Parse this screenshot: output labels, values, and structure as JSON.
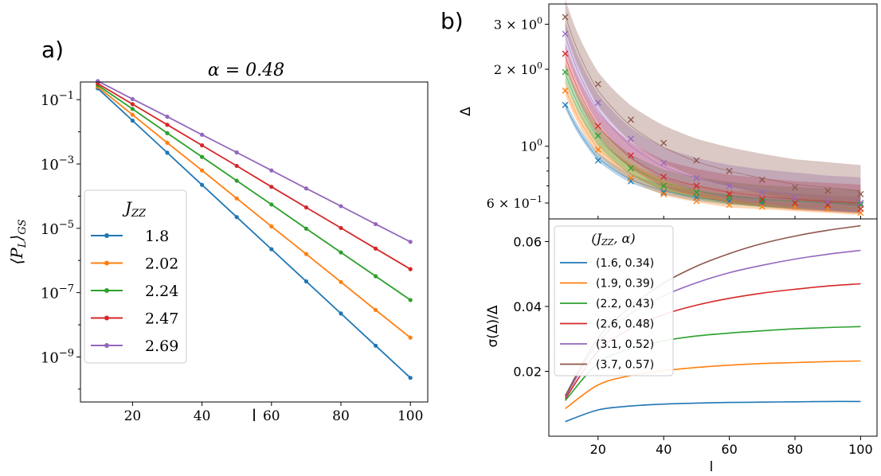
{
  "panel_labels": {
    "a": "a)",
    "b": "b)"
  },
  "colors": {
    "blue": "#1f77b4",
    "orange": "#ff7f0e",
    "green": "#2ca02c",
    "red": "#d62728",
    "purple": "#9467bd",
    "brown": "#8c564b"
  },
  "chart_data": [
    {
      "id": "panel-a",
      "type": "line",
      "title": "α = 0.48",
      "xlabel": "l",
      "ylabel": "⟨P_L⟩_GS",
      "yscale": "log",
      "xlim": [
        5,
        105
      ],
      "ylim_log10": [
        -10.4,
        -0.45
      ],
      "xticks": [
        20,
        40,
        60,
        80,
        100
      ],
      "yticks": [
        {
          "exp": -1,
          "label": "10^-1"
        },
        {
          "exp": -3,
          "label": "10^-3"
        },
        {
          "exp": -5,
          "label": "10^-5"
        },
        {
          "exp": -7,
          "label": "10^-7"
        },
        {
          "exp": -9,
          "label": "10^-9"
        }
      ],
      "legend": {
        "title": "J_ZZ",
        "placement": "lower-left"
      },
      "x": [
        10,
        20,
        30,
        40,
        50,
        60,
        70,
        80,
        90,
        100
      ],
      "series": [
        {
          "name": "1.8",
          "color": "#1f77b4",
          "log10_values": [
            -0.65,
            -1.65,
            -2.65,
            -3.65,
            -4.65,
            -5.65,
            -6.65,
            -7.65,
            -8.65,
            -9.65
          ]
        },
        {
          "name": "2.02",
          "color": "#ff7f0e",
          "log10_values": [
            -0.6,
            -1.47,
            -2.34,
            -3.2,
            -4.07,
            -4.94,
            -5.8,
            -6.67,
            -7.54,
            -8.4
          ]
        },
        {
          "name": "2.24",
          "color": "#2ca02c",
          "log10_values": [
            -0.55,
            -1.29,
            -2.04,
            -2.78,
            -3.52,
            -4.26,
            -5.01,
            -5.75,
            -6.49,
            -7.23
          ]
        },
        {
          "name": "2.47",
          "color": "#d62728",
          "log10_values": [
            -0.5,
            -1.14,
            -1.78,
            -2.42,
            -3.06,
            -3.71,
            -4.35,
            -4.99,
            -5.63,
            -6.27
          ]
        },
        {
          "name": "2.69",
          "color": "#9467bd",
          "log10_values": [
            -0.42,
            -0.98,
            -1.53,
            -2.09,
            -2.64,
            -3.2,
            -3.76,
            -4.31,
            -4.87,
            -5.42
          ]
        }
      ]
    },
    {
      "id": "panel-b-top",
      "type": "scatter",
      "xlabel": "",
      "ylabel": "Δ",
      "yscale": "log",
      "xlim": [
        5,
        105
      ],
      "ylim": [
        0.52,
        3.6
      ],
      "xticks": [
        20,
        40,
        60,
        80,
        100
      ],
      "yticks": [
        {
          "value": 3.0,
          "label": "3 × 10^0"
        },
        {
          "value": 2.0,
          "label": "2 × 10^0"
        },
        {
          "value": 1.0,
          "label": "10^0"
        },
        {
          "value": 0.6,
          "label": "6 × 10^-1"
        }
      ],
      "x": [
        10,
        20,
        30,
        40,
        50,
        60,
        70,
        80,
        90,
        100
      ],
      "series": [
        {
          "name": "(1.6, 0.34)",
          "color": "#1f77b4",
          "values": [
            1.45,
            0.88,
            0.73,
            0.66,
            0.63,
            0.61,
            0.6,
            0.6,
            0.59,
            0.6
          ],
          "fit_mid": [
            1.45,
            0.9,
            0.74,
            0.67,
            0.63,
            0.61,
            0.6,
            0.59,
            0.58,
            0.57
          ],
          "band_fraction": 0.06
        },
        {
          "name": "(1.9, 0.39)",
          "color": "#ff7f0e",
          "values": [
            1.65,
            0.97,
            0.75,
            0.65,
            0.61,
            0.59,
            0.58,
            0.58,
            0.57,
            0.55
          ],
          "fit_mid": [
            1.68,
            0.98,
            0.78,
            0.68,
            0.64,
            0.61,
            0.6,
            0.59,
            0.58,
            0.57
          ],
          "band_fraction": 0.11
        },
        {
          "name": "(2.2, 0.43)",
          "color": "#2ca02c",
          "values": [
            1.95,
            1.1,
            0.82,
            0.7,
            0.66,
            0.63,
            0.61,
            0.6,
            0.59,
            0.59
          ],
          "fit_mid": [
            1.93,
            1.08,
            0.83,
            0.72,
            0.67,
            0.64,
            0.62,
            0.61,
            0.6,
            0.59
          ],
          "band_fraction": 0.14
        },
        {
          "name": "(2.6, 0.48)",
          "color": "#d62728",
          "values": [
            2.3,
            1.2,
            0.92,
            0.76,
            0.7,
            0.65,
            0.62,
            0.6,
            0.59,
            0.57
          ],
          "fit_mid": [
            2.25,
            1.2,
            0.9,
            0.76,
            0.7,
            0.66,
            0.64,
            0.62,
            0.61,
            0.6
          ],
          "band_fraction": 0.18
        },
        {
          "name": "(3.1, 0.52)",
          "color": "#9467bd",
          "values": [
            2.75,
            1.48,
            1.07,
            0.86,
            0.75,
            0.7,
            0.66,
            0.63,
            0.61,
            0.6
          ],
          "fit_mid": [
            2.7,
            1.38,
            1.0,
            0.83,
            0.75,
            0.7,
            0.67,
            0.65,
            0.63,
            0.62
          ],
          "band_fraction": 0.22
        },
        {
          "name": "(3.7, 0.57)",
          "color": "#8c564b",
          "values": [
            3.2,
            1.75,
            1.27,
            1.03,
            0.88,
            0.8,
            0.74,
            0.69,
            0.67,
            0.65
          ],
          "fit_mid": [
            3.25,
            1.65,
            1.2,
            0.99,
            0.87,
            0.8,
            0.75,
            0.71,
            0.69,
            0.67
          ],
          "band_fraction": 0.26
        }
      ]
    },
    {
      "id": "panel-b-bottom",
      "type": "line",
      "xlabel": "l",
      "ylabel": "σ(Δ)/Δ",
      "xlim": [
        5,
        105
      ],
      "ylim": [
        0.0,
        0.067
      ],
      "xticks": [
        20,
        40,
        60,
        80,
        100
      ],
      "yticks": [
        {
          "value": 0.02,
          "label": "0.02"
        },
        {
          "value": 0.04,
          "label": "0.04"
        },
        {
          "value": 0.06,
          "label": "0.06"
        }
      ],
      "legend": {
        "title": "(J_ZZ, α)",
        "placement": "upper-left"
      },
      "x": [
        10,
        20,
        30,
        40,
        50,
        60,
        70,
        80,
        90,
        100
      ],
      "series": [
        {
          "name": "(1.6, 0.34)",
          "color": "#1f77b4",
          "values": [
            0.0045,
            0.0081,
            0.0093,
            0.0099,
            0.0102,
            0.0104,
            0.0105,
            0.0106,
            0.0107,
            0.0107
          ]
        },
        {
          "name": "(1.9, 0.39)",
          "color": "#ff7f0e",
          "values": [
            0.0085,
            0.0158,
            0.0187,
            0.0202,
            0.0212,
            0.0219,
            0.0224,
            0.0227,
            0.023,
            0.0232
          ]
        },
        {
          "name": "(2.2, 0.43)",
          "color": "#2ca02c",
          "values": [
            0.011,
            0.0225,
            0.027,
            0.0294,
            0.0309,
            0.0318,
            0.0325,
            0.0331,
            0.0335,
            0.0338
          ]
        },
        {
          "name": "(2.6, 0.48)",
          "color": "#d62728",
          "values": [
            0.0115,
            0.0262,
            0.0332,
            0.0375,
            0.0404,
            0.0425,
            0.0441,
            0.0453,
            0.0463,
            0.047
          ]
        },
        {
          "name": "(3.1, 0.52)",
          "color": "#9467bd",
          "values": [
            0.012,
            0.0289,
            0.0378,
            0.0433,
            0.0473,
            0.0504,
            0.0527,
            0.0546,
            0.0561,
            0.0573
          ]
        },
        {
          "name": "(3.7, 0.57)",
          "color": "#8c564b",
          "values": [
            0.0125,
            0.0303,
            0.0399,
            0.0472,
            0.0524,
            0.0563,
            0.0594,
            0.0617,
            0.0635,
            0.0649
          ]
        }
      ]
    }
  ]
}
